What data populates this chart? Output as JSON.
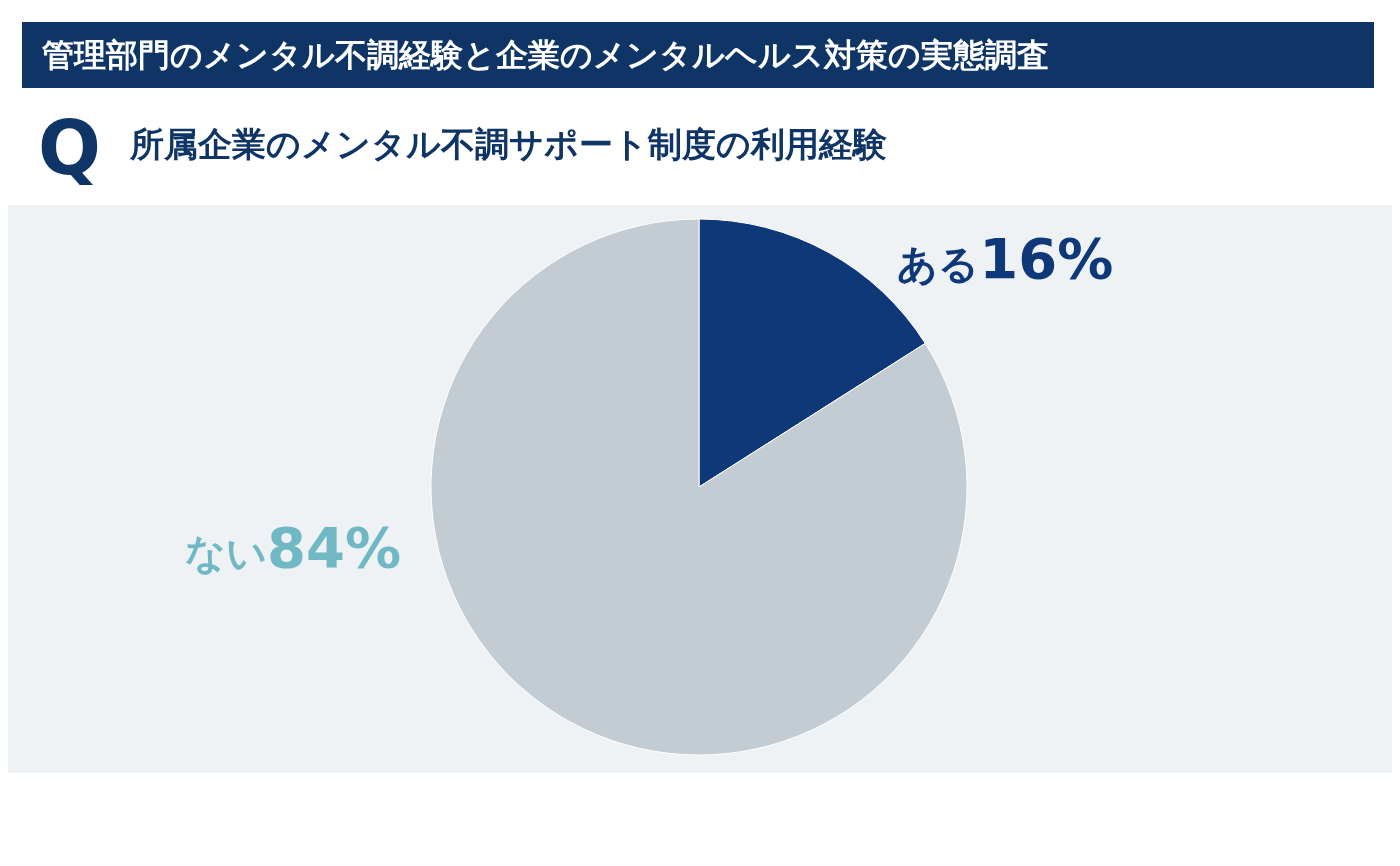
{
  "chart_data": {
    "type": "pie",
    "title": "管理部門のメンタル不調経験と企業のメンタルヘルス対策の実態調査",
    "subtitle": "所属企業のメンタル不調サポート制度の利用経験",
    "annotations": [
      "Q"
    ],
    "categories": [
      "ある",
      "ない"
    ],
    "values": [
      16,
      84
    ],
    "value_labels": [
      "16%",
      "84%"
    ],
    "colors": [
      "#0f3879",
      "#c3cbd3"
    ]
  }
}
